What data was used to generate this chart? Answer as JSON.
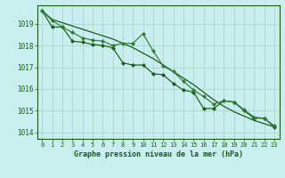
{
  "title": "Graphe pression niveau de la mer (hPa)",
  "background_color": "#c8eef0",
  "grid_color": "#b0d8d0",
  "line_color_dark": "#1a5c1a",
  "line_color_mid": "#2e7d2e",
  "xlim": [
    -0.5,
    23.5
  ],
  "ylim": [
    1013.7,
    1019.85
  ],
  "yticks": [
    1014,
    1015,
    1016,
    1017,
    1018,
    1019
  ],
  "xticks": [
    0,
    1,
    2,
    3,
    4,
    5,
    6,
    7,
    8,
    9,
    10,
    11,
    12,
    13,
    14,
    15,
    16,
    17,
    18,
    19,
    20,
    21,
    22,
    23
  ],
  "series1_smooth": [
    1019.6,
    1019.2,
    1019.05,
    1018.9,
    1018.75,
    1018.6,
    1018.45,
    1018.3,
    1018.1,
    1017.9,
    1017.65,
    1017.4,
    1017.1,
    1016.8,
    1016.5,
    1016.2,
    1015.85,
    1015.5,
    1015.2,
    1014.95,
    1014.75,
    1014.55,
    1014.4,
    1014.25
  ],
  "series2_upper": [
    1019.6,
    1019.15,
    1018.85,
    1018.6,
    1018.35,
    1018.25,
    1018.2,
    1018.0,
    1018.1,
    1018.1,
    1018.55,
    1017.75,
    1017.05,
    1016.8,
    1016.35,
    1015.95,
    1015.65,
    1015.3,
    1015.45,
    1015.4,
    1015.05,
    1014.7,
    1014.65,
    1014.3
  ],
  "series3_lower": [
    1019.6,
    1018.85,
    1018.85,
    1018.2,
    1018.15,
    1018.05,
    1018.0,
    1017.9,
    1017.2,
    1017.1,
    1017.1,
    1016.7,
    1016.65,
    1016.25,
    1015.95,
    1015.85,
    1015.1,
    1015.1,
    1015.45,
    1015.4,
    1015.0,
    1014.65,
    1014.65,
    1014.25
  ]
}
